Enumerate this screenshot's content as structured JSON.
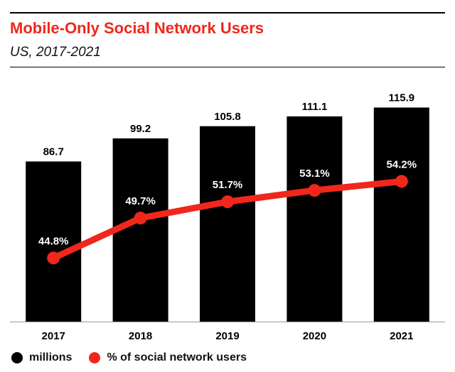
{
  "chart_data": {
    "type": "bar",
    "title": "Mobile-Only Social Network Users",
    "subtitle": "US, 2017-2021",
    "categories": [
      "2017",
      "2018",
      "2019",
      "2020",
      "2021"
    ],
    "series": [
      {
        "name": "millions",
        "type": "bar",
        "values": [
          86.7,
          99.2,
          105.8,
          111.1,
          115.9
        ],
        "labels": [
          "86.7",
          "99.2",
          "105.8",
          "111.1",
          "115.9"
        ],
        "color": "#000000"
      },
      {
        "name": "% of social network users",
        "type": "line",
        "values": [
          44.8,
          49.7,
          51.7,
          53.1,
          54.2
        ],
        "labels": [
          "44.8%",
          "49.7%",
          "51.7%",
          "53.1%",
          "54.2%"
        ],
        "color": "#f0271b"
      }
    ],
    "ylim_bars": [
      0,
      128
    ],
    "ylim_line": [
      37,
      66
    ],
    "grid": false,
    "legend": "bottom-left"
  }
}
